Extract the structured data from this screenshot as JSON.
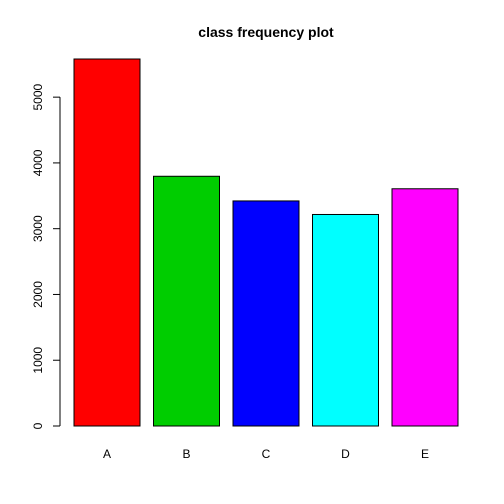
{
  "chart_data": {
    "type": "bar",
    "title": "class frequency plot",
    "xlabel": "",
    "ylabel": "",
    "categories": [
      "A",
      "B",
      "C",
      "D",
      "E"
    ],
    "values": [
      5580,
      3797,
      3422,
      3216,
      3607
    ],
    "colors": [
      "#ff0000",
      "#00cd00",
      "#0000ff",
      "#00ffff",
      "#ff00ff"
    ],
    "yticks": [
      0,
      1000,
      2000,
      3000,
      4000,
      5000
    ],
    "ylim": [
      0,
      5580
    ],
    "grid": false,
    "legend": "none"
  }
}
